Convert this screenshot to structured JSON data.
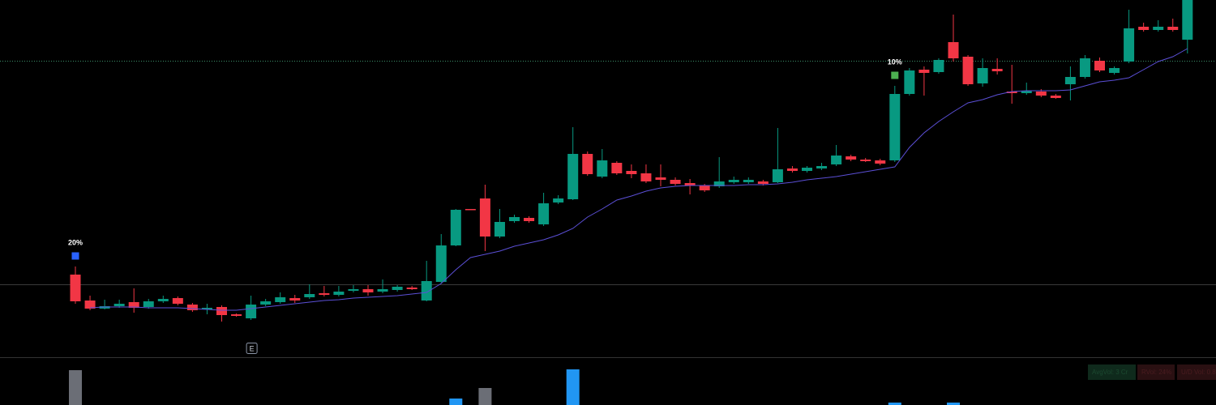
{
  "chart_data": {
    "type": "candlestick",
    "open": [
      161,
      129,
      119,
      122,
      127,
      121,
      128,
      132,
      124,
      118,
      121,
      112,
      107,
      124,
      127,
      132,
      133,
      138,
      136,
      141,
      143,
      140,
      142,
      145,
      129,
      152,
      197,
      242,
      255,
      208,
      227,
      231,
      223,
      250,
      254,
      310,
      282,
      299,
      289,
      286,
      281,
      278,
      274,
      271,
      270,
      275,
      275,
      276,
      275,
      292,
      289,
      292,
      297,
      307,
      303,
      302,
      302,
      384,
      414,
      411,
      448,
      430,
      397,
      415,
      387,
      385,
      387,
      382,
      396,
      405,
      425,
      410,
      424,
      467,
      463,
      467,
      451
    ],
    "high": [
      171,
      135,
      130,
      130,
      144,
      131,
      135,
      134,
      126,
      125,
      123,
      113,
      135,
      131,
      139,
      136,
      149,
      147,
      147,
      148,
      148,
      155,
      148,
      147,
      178,
      211,
      242,
      242,
      272,
      242,
      235,
      233,
      262,
      259,
      343,
      313,
      316,
      301,
      297,
      297,
      297,
      281,
      279,
      273,
      306,
      282,
      281,
      278,
      342,
      295,
      295,
      299,
      321,
      309,
      305,
      304,
      394,
      416,
      418,
      428,
      482,
      432,
      428,
      428,
      420,
      398,
      390,
      384,
      418,
      432,
      429,
      418,
      488,
      472,
      475,
      477,
      520
    ],
    "low": [
      125,
      117,
      118,
      120,
      114,
      119,
      126,
      123,
      115,
      112,
      103,
      109,
      105,
      122,
      125,
      126,
      131,
      134,
      134,
      139,
      135,
      138,
      140,
      142,
      128,
      150,
      196,
      241,
      190,
      206,
      225,
      225,
      221,
      248,
      253,
      283,
      280,
      284,
      280,
      274,
      270,
      271,
      260,
      263,
      268,
      273,
      273,
      271,
      274,
      287,
      287,
      290,
      295,
      301,
      300,
      296,
      300,
      382,
      382,
      409,
      424,
      394,
      393,
      408,
      372,
      383,
      380,
      378,
      376,
      403,
      411,
      408,
      422,
      461,
      461,
      461,
      434
    ],
    "close": [
      128,
      119,
      122,
      125,
      120,
      128,
      131,
      125,
      117,
      120,
      111,
      110,
      124,
      128,
      133,
      129,
      137,
      136,
      140,
      143,
      139,
      143,
      146,
      143,
      153,
      197,
      241,
      241,
      208,
      226,
      232,
      227,
      249,
      255,
      310,
      285,
      302,
      286,
      285,
      276,
      278,
      273,
      271,
      265,
      276,
      278,
      278,
      273,
      291,
      289,
      293,
      295,
      308,
      303,
      301,
      298,
      384,
      413,
      410,
      426,
      428,
      396,
      416,
      412,
      385,
      388,
      382,
      379,
      405,
      428,
      413,
      416,
      465,
      463,
      467,
      463,
      510
    ],
    "up_color": "#089981",
    "down_color": "#f23645",
    "moving_average": {
      "color": "#5b4fd6",
      "values": [
        null,
        120,
        121,
        121,
        121,
        120,
        120,
        120,
        119,
        118,
        117,
        117,
        119,
        121,
        123,
        125,
        127,
        129,
        130,
        132,
        133,
        134,
        135,
        137,
        139,
        150,
        167,
        182,
        186,
        190,
        196,
        200,
        204,
        210,
        218,
        232,
        242,
        253,
        258,
        264,
        268,
        270,
        271,
        271,
        271,
        271,
        272,
        272,
        273,
        275,
        278,
        280,
        282,
        285,
        288,
        291,
        294,
        318,
        336,
        350,
        362,
        373,
        377,
        383,
        387,
        388,
        388,
        388,
        389,
        394,
        399,
        401,
        404,
        414,
        424,
        430,
        440
      ]
    },
    "ylim": [
      0,
      500
    ],
    "levels": [
      {
        "value": 425,
        "color": "#3d8f6a"
      },
      {
        "value": 149,
        "color": "#3a3a3a"
      }
    ],
    "volume": {
      "ylim": [
        0,
        59
      ],
      "values": [
        43,
        null,
        null,
        null,
        null,
        null,
        null,
        null,
        null,
        null,
        null,
        null,
        null,
        null,
        null,
        null,
        null,
        null,
        null,
        null,
        null,
        null,
        null,
        null,
        null,
        null,
        8,
        null,
        21,
        null,
        null,
        null,
        null,
        null,
        44,
        null,
        null,
        null,
        null,
        null,
        null,
        null,
        null,
        null,
        null,
        null,
        null,
        null,
        null,
        null,
        null,
        null,
        null,
        null,
        null,
        null,
        3,
        null,
        null,
        null,
        3,
        null,
        null,
        null,
        null,
        null,
        null,
        null,
        null,
        null,
        null,
        null,
        null,
        null,
        null,
        null,
        null
      ],
      "colors": [
        "#6b6e76",
        "#2196f3",
        "#6b6e76",
        "#2196f3",
        "#2196f3",
        "#2196f3"
      ]
    },
    "annotations": [
      {
        "text": "20%",
        "index": 0,
        "marker_color": "#2962ff"
      },
      {
        "text": "10%",
        "index": 56,
        "marker_color": "#4caf50"
      }
    ],
    "event_marker": {
      "text": "E",
      "index": 12
    },
    "stats": [
      "AvgVol: 3 Cr",
      "RVol: 24%",
      "U/D Vol: 0.8"
    ]
  }
}
